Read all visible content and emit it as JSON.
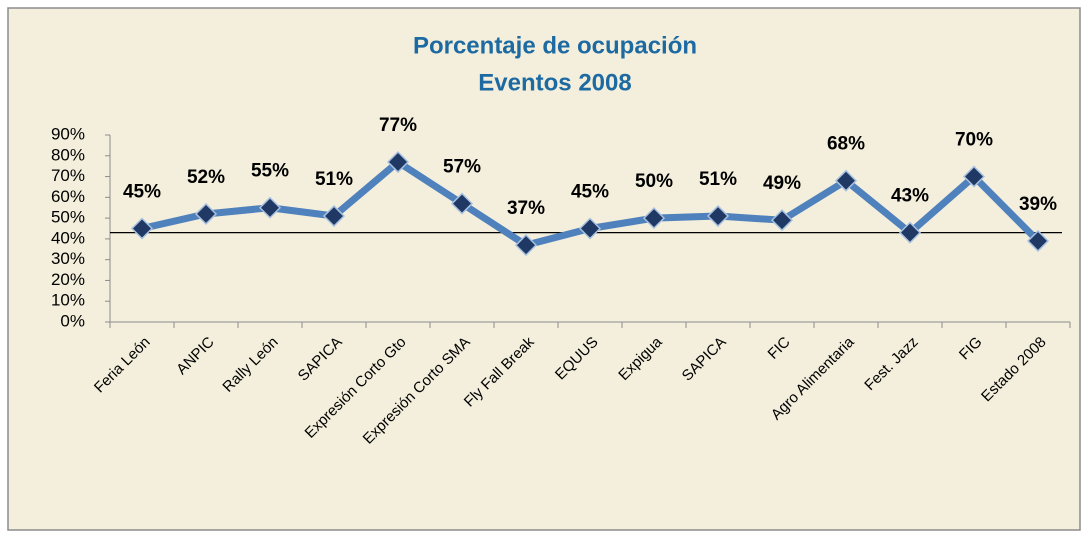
{
  "chart_data": {
    "type": "line",
    "title": "Porcentaje de ocupación",
    "subtitle": "Eventos 2008",
    "categories": [
      "Feria León",
      "ANPIC",
      "Rally León",
      "SAPICA",
      "Expresión Corto Gto",
      "Expresión Corto SMA",
      "Fly Fall Break",
      "EQUUS",
      "Expigua",
      "SAPICA",
      "FIC",
      "Agro Alimentaria",
      "Fest. Jazz",
      "FIG",
      "Estado 2008"
    ],
    "series": [
      {
        "color": "#4f81bd",
        "values": [
          45,
          52,
          55,
          51,
          77,
          57,
          37,
          45,
          50,
          51,
          49,
          68,
          43,
          70,
          39
        ],
        "value_labels": [
          "45%",
          "52%",
          "55%",
          "51%",
          "77%",
          "57%",
          "37%",
          "45%",
          "50%",
          "51%",
          "49%",
          "68%",
          "43%",
          "70%",
          "39%"
        ]
      }
    ],
    "marker_color": "#1f3864",
    "reference_line": 43,
    "ylim": [
      0,
      90
    ],
    "yticks": [
      {
        "value": 0,
        "label": "0%"
      },
      {
        "value": 10,
        "label": "10%"
      },
      {
        "value": 20,
        "label": "20%"
      },
      {
        "value": 30,
        "label": "30%"
      },
      {
        "value": 40,
        "label": "40%"
      },
      {
        "value": 50,
        "label": "50%"
      },
      {
        "value": 60,
        "label": "60%"
      },
      {
        "value": 70,
        "label": "70%"
      },
      {
        "value": 80,
        "label": "80%"
      },
      {
        "value": 90,
        "label": "90%"
      }
    ]
  }
}
